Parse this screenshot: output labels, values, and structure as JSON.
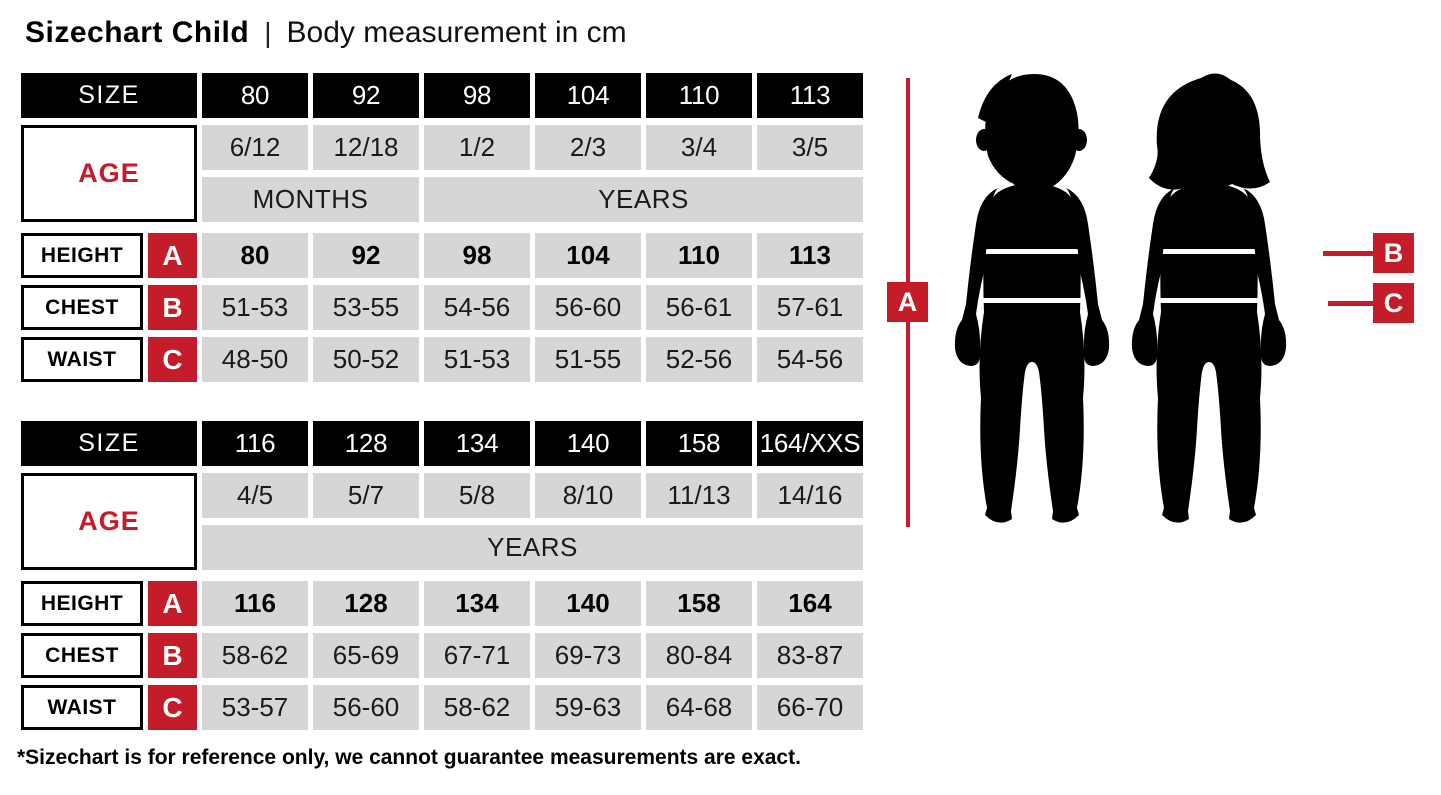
{
  "title": {
    "main": "Sizechart Child",
    "separator": "|",
    "subtitle": "Body measurement in cm"
  },
  "colors": {
    "red": "#c41c28",
    "gray": "#d6d6d6",
    "black": "#000000",
    "white": "#ffffff"
  },
  "labels": {
    "size": "SIZE",
    "age": "AGE",
    "height": "HEIGHT",
    "chest": "CHEST",
    "waist": "WAIST",
    "a": "A",
    "b": "B",
    "c": "C"
  },
  "table1": {
    "sizes": [
      "80",
      "92",
      "98",
      "104",
      "110",
      "113"
    ],
    "ages": [
      "6/12",
      "12/18",
      "1/2",
      "2/3",
      "3/4",
      "3/5"
    ],
    "age_unit_spans": [
      {
        "label": "MONTHS",
        "span": 2
      },
      {
        "label": "YEARS",
        "span": 4
      }
    ],
    "height": [
      "80",
      "92",
      "98",
      "104",
      "110",
      "113"
    ],
    "chest": [
      "51-53",
      "53-55",
      "54-56",
      "56-60",
      "56-61",
      "57-61"
    ],
    "waist": [
      "48-50",
      "50-52",
      "51-53",
      "51-55",
      "52-56",
      "54-56"
    ]
  },
  "table2": {
    "sizes": [
      "116",
      "128",
      "134",
      "140",
      "158",
      "164/XXS"
    ],
    "ages": [
      "4/5",
      "5/7",
      "5/8",
      "8/10",
      "11/13",
      "14/16"
    ],
    "age_unit_spans": [
      {
        "label": "YEARS",
        "span": 6
      }
    ],
    "height": [
      "116",
      "128",
      "134",
      "140",
      "158",
      "164"
    ],
    "chest": [
      "58-62",
      "65-69",
      "67-71",
      "69-73",
      "80-84",
      "83-87"
    ],
    "waist": [
      "53-57",
      "56-60",
      "58-62",
      "59-63",
      "64-68",
      "66-70"
    ]
  },
  "diagram": {
    "marker_a": "A",
    "marker_b": "B",
    "marker_c": "C"
  },
  "footnote": "*Sizechart is for reference only, we cannot guarantee measurements are exact."
}
